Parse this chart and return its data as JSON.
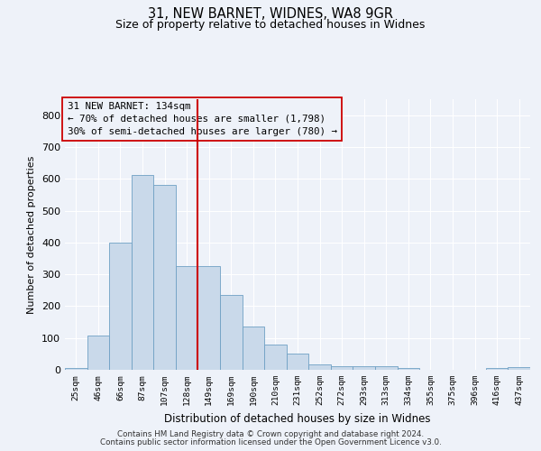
{
  "title1": "31, NEW BARNET, WIDNES, WA8 9GR",
  "title2": "Size of property relative to detached houses in Widnes",
  "xlabel": "Distribution of detached houses by size in Widnes",
  "ylabel": "Number of detached properties",
  "footer1": "Contains HM Land Registry data © Crown copyright and database right 2024.",
  "footer2": "Contains public sector information licensed under the Open Government Licence v3.0.",
  "annotation_line1": "31 NEW BARNET: 134sqm",
  "annotation_line2": "← 70% of detached houses are smaller (1,798)",
  "annotation_line3": "30% of semi-detached houses are larger (780) →",
  "bar_categories": [
    "25sqm",
    "46sqm",
    "66sqm",
    "87sqm",
    "107sqm",
    "128sqm",
    "149sqm",
    "169sqm",
    "190sqm",
    "210sqm",
    "231sqm",
    "252sqm",
    "272sqm",
    "293sqm",
    "313sqm",
    "334sqm",
    "355sqm",
    "375sqm",
    "396sqm",
    "416sqm",
    "437sqm"
  ],
  "bar_values": [
    5,
    107,
    400,
    612,
    582,
    325,
    325,
    236,
    135,
    78,
    50,
    18,
    12,
    12,
    12,
    5,
    0,
    0,
    0,
    5,
    8
  ],
  "bar_color": "#c9d9ea",
  "bar_edge_color": "#6fa0c4",
  "vline_color": "#cc0000",
  "vline_pos": 5.5,
  "background_color": "#eef2f9",
  "grid_color": "#ffffff",
  "ylim": [
    0,
    850
  ],
  "yticks": [
    0,
    100,
    200,
    300,
    400,
    500,
    600,
    700,
    800
  ]
}
